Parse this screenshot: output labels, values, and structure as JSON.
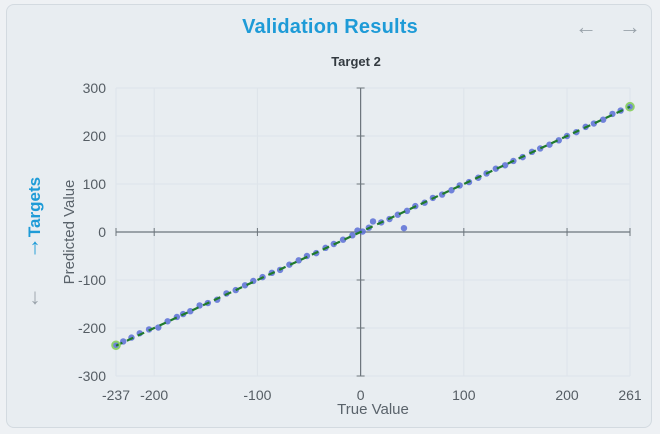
{
  "header": {
    "title": "Validation Results",
    "nav_prev_icon": "arrow-left-icon",
    "nav_next_icon": "arrow-right-icon"
  },
  "side_nav": {
    "label": "Targets",
    "up_icon": "arrow-up-icon",
    "down_icon": "arrow-down-icon"
  },
  "colors": {
    "accent": "#1e9bd7",
    "points": "#5b6fd6",
    "fit_line": "#1f7a2c",
    "endpoint": "#8fd16a"
  },
  "chart_data": {
    "type": "scatter",
    "title": "Target 2",
    "xlabel": "True Value",
    "ylabel": "Predicted Value",
    "xlim": [
      -237,
      261
    ],
    "ylim": [
      -300,
      300
    ],
    "x_ticks": [
      -237,
      -200,
      -100,
      0,
      100,
      200,
      261
    ],
    "y_ticks": [
      300,
      200,
      100,
      0,
      -100,
      -200,
      -300
    ],
    "grid": true,
    "series": [
      {
        "values": [
          [
            -237,
            -236
          ],
          [
            -230,
            -228
          ],
          [
            -222,
            -220
          ],
          [
            -214,
            -211
          ],
          [
            -205,
            -203
          ],
          [
            -196,
            -199
          ],
          [
            -187,
            -186
          ],
          [
            -178,
            -177
          ],
          [
            -172,
            -171
          ],
          [
            -165,
            -165
          ],
          [
            -156,
            -153
          ],
          [
            -148,
            -148
          ],
          [
            -139,
            -141
          ],
          [
            -130,
            -128
          ],
          [
            -121,
            -121
          ],
          [
            -112,
            -111
          ],
          [
            -104,
            -102
          ],
          [
            -95,
            -94
          ],
          [
            -86,
            -85
          ],
          [
            -78,
            -79
          ],
          [
            -69,
            -68
          ],
          [
            -60,
            -59
          ],
          [
            -52,
            -50
          ],
          [
            -43,
            -44
          ],
          [
            -34,
            -33
          ],
          [
            -26,
            -25
          ],
          [
            -17,
            -16
          ],
          [
            -8,
            -7
          ],
          [
            -3,
            3
          ],
          [
            2,
            1
          ],
          [
            8,
            9
          ],
          [
            12,
            22
          ],
          [
            20,
            20
          ],
          [
            28,
            27
          ],
          [
            36,
            36
          ],
          [
            42,
            8
          ],
          [
            45,
            44
          ],
          [
            53,
            54
          ],
          [
            62,
            61
          ],
          [
            70,
            71
          ],
          [
            79,
            78
          ],
          [
            88,
            87
          ],
          [
            96,
            97
          ],
          [
            105,
            104
          ],
          [
            114,
            113
          ],
          [
            122,
            122
          ],
          [
            131,
            132
          ],
          [
            140,
            139
          ],
          [
            148,
            148
          ],
          [
            157,
            156
          ],
          [
            166,
            167
          ],
          [
            174,
            174
          ],
          [
            183,
            182
          ],
          [
            192,
            191
          ],
          [
            200,
            200
          ],
          [
            209,
            208
          ],
          [
            218,
            219
          ],
          [
            226,
            226
          ],
          [
            235,
            234
          ],
          [
            244,
            246
          ],
          [
            252,
            253
          ],
          [
            261,
            261
          ]
        ]
      }
    ],
    "fit_line": [
      [
        -237,
        -237
      ],
      [
        261,
        261
      ]
    ],
    "highlighted_points": [
      [
        -237,
        -236
      ],
      [
        261,
        261
      ]
    ]
  }
}
